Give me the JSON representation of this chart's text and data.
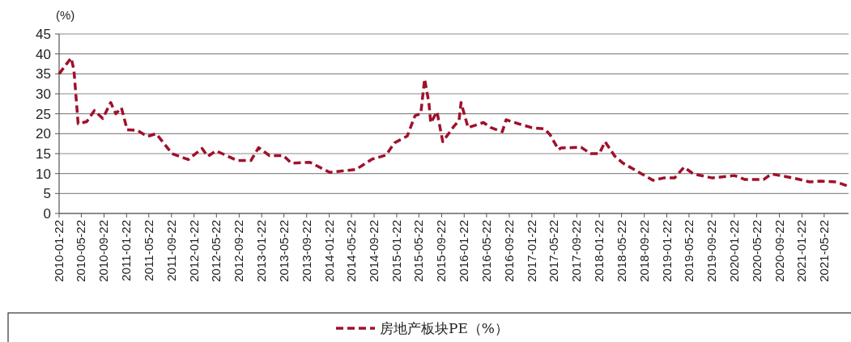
{
  "chart_data": {
    "type": "line",
    "ylabel": "(%)",
    "x": [
      "2010-01-22",
      "2010-03-28",
      "2010-04-12",
      "2010-05-05",
      "2010-06-20",
      "2010-08-01",
      "2010-09-15",
      "2010-10-28",
      "2010-11-25",
      "2010-12-25",
      "2011-01-25",
      "2011-03-22",
      "2011-05-15",
      "2011-07-01",
      "2011-09-25",
      "2011-12-22",
      "2012-03-05",
      "2012-04-05",
      "2012-05-20",
      "2012-09-10",
      "2012-11-25",
      "2013-01-05",
      "2013-03-05",
      "2013-05-20",
      "2013-07-01",
      "2013-10-10",
      "2014-01-25",
      "2014-06-15",
      "2014-09-10",
      "2014-11-25",
      "2015-01-10",
      "2015-03-20",
      "2015-05-01",
      "2015-06-01",
      "2015-06-22",
      "2015-07-15",
      "2015-07-25",
      "2015-08-28",
      "2015-09-28",
      "2015-11-25",
      "2015-12-25",
      "2016-01-05",
      "2016-02-12",
      "2016-05-05",
      "2016-06-15",
      "2016-08-15",
      "2016-09-05",
      "2016-11-10",
      "2017-01-22",
      "2017-04-01",
      "2017-05-01",
      "2017-06-15",
      "2017-06-28",
      "2017-10-15",
      "2017-12-05",
      "2018-01-22",
      "2018-02-22",
      "2018-04-15",
      "2018-05-30",
      "2018-08-25",
      "2018-11-08",
      "2019-01-05",
      "2019-03-05",
      "2019-04-25",
      "2019-06-15",
      "2019-09-25",
      "2020-01-22",
      "2020-03-20",
      "2020-06-28",
      "2020-08-10",
      "2020-12-05",
      "2021-03-05",
      "2021-05-01",
      "2021-07-25",
      "2021-09-25"
    ],
    "series": [
      {
        "name": "房地产板块PE（%）",
        "color": "#a0102a",
        "values": [
          35,
          39,
          36,
          22.5,
          23,
          25.8,
          23.8,
          27.8,
          25,
          26.5,
          21,
          20.8,
          19.3,
          20,
          15,
          13.5,
          16.3,
          14.3,
          15.7,
          13.3,
          13.3,
          16.5,
          14.5,
          14.5,
          12.6,
          12.8,
          10.3,
          11,
          13.6,
          14.6,
          17.7,
          19.4,
          24.5,
          25,
          33.7,
          27.8,
          22.7,
          25.5,
          18,
          21.7,
          23.3,
          27.8,
          21.5,
          22.8,
          21.5,
          20.5,
          23.5,
          22.5,
          21.5,
          21.2,
          19.7,
          16,
          16.4,
          16.6,
          15,
          15,
          18,
          14.4,
          12.6,
          10.3,
          8.3,
          8.9,
          8.9,
          11.6,
          9.9,
          8.9,
          9.5,
          8.5,
          8.5,
          9.9,
          8.9,
          7.9,
          8.1,
          7.9,
          6.9
        ]
      }
    ],
    "xlim": [
      "2010-01-22",
      "2021-10-01"
    ],
    "xticks": [
      "2010-01-22",
      "2010-05-22",
      "2010-09-22",
      "2011-01-22",
      "2011-05-22",
      "2011-09-22",
      "2012-01-22",
      "2012-05-22",
      "2012-09-22",
      "2013-01-22",
      "2013-05-22",
      "2013-09-22",
      "2014-01-22",
      "2014-05-22",
      "2014-09-22",
      "2015-01-22",
      "2015-05-22",
      "2015-09-22",
      "2016-01-22",
      "2016-05-22",
      "2016-09-22",
      "2017-01-22",
      "2017-05-22",
      "2017-09-22",
      "2018-01-22",
      "2018-05-22",
      "2018-09-22",
      "2019-01-22",
      "2019-05-22",
      "2019-09-22",
      "2020-01-22",
      "2020-05-22",
      "2020-09-22",
      "2021-01-22",
      "2021-05-22"
    ],
    "ylim": [
      0,
      45
    ],
    "yticks": [
      0,
      5,
      10,
      15,
      20,
      25,
      30,
      35,
      40,
      45
    ],
    "grid": "y",
    "legend": "bottom",
    "marker": "none",
    "line_style": "dashed"
  }
}
